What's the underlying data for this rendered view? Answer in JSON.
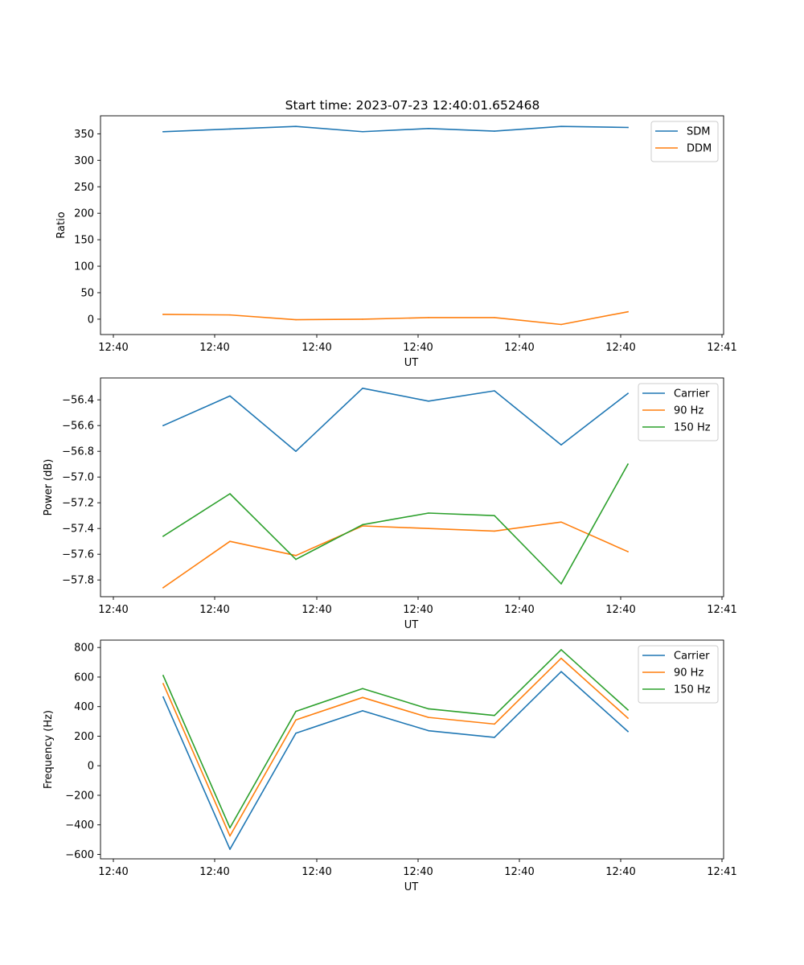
{
  "figure_title": "Start time: 2023-07-23 12:40:01.652468",
  "colors": {
    "blue": "#1f77b4",
    "orange": "#ff7f0e",
    "green": "#2ca02c"
  },
  "chart_data": [
    {
      "type": "line",
      "xlabel": "UT",
      "ylabel": "Ratio",
      "x_tick_labels": [
        "12:40",
        "12:40",
        "12:40",
        "12:40",
        "12:40",
        "12:40",
        "12:41"
      ],
      "y_ticks": [
        0,
        50,
        100,
        150,
        200,
        250,
        300,
        350
      ],
      "ylim": [
        -29,
        384
      ],
      "legend_position": "top-right",
      "x": [
        1,
        2,
        3,
        4,
        5,
        6,
        7,
        8
      ],
      "series": [
        {
          "name": "SDM",
          "color": "#1f77b4",
          "values": [
            354,
            359,
            364,
            354,
            360,
            355,
            364,
            362
          ]
        },
        {
          "name": "DDM",
          "color": "#ff7f0e",
          "values": [
            9,
            8,
            -1,
            0,
            3,
            3,
            -10,
            14
          ]
        }
      ]
    },
    {
      "type": "line",
      "xlabel": "UT",
      "ylabel": "Power (dB)",
      "x_tick_labels": [
        "12:40",
        "12:40",
        "12:40",
        "12:40",
        "12:40",
        "12:40",
        "12:41"
      ],
      "y_ticks": [
        -57.8,
        -57.6,
        -57.4,
        -57.2,
        -57.0,
        -56.8,
        -56.6,
        -56.4
      ],
      "ylim": [
        -57.93,
        -56.23
      ],
      "legend_position": "top-right",
      "x": [
        1,
        2,
        3,
        4,
        5,
        6,
        7,
        8
      ],
      "series": [
        {
          "name": "Carrier",
          "color": "#1f77b4",
          "values": [
            -56.6,
            -56.37,
            -56.8,
            -56.31,
            -56.41,
            -56.33,
            -56.75,
            -56.35
          ]
        },
        {
          "name": "90 Hz",
          "color": "#ff7f0e",
          "values": [
            -57.86,
            -57.5,
            -57.61,
            -57.38,
            -57.4,
            -57.42,
            -57.35,
            -57.58
          ]
        },
        {
          "name": "150 Hz",
          "color": "#2ca02c",
          "values": [
            -57.46,
            -57.13,
            -57.64,
            -57.37,
            -57.28,
            -57.3,
            -57.83,
            -56.9
          ]
        }
      ]
    },
    {
      "type": "line",
      "xlabel": "UT",
      "ylabel": "Frequency (Hz)",
      "x_tick_labels": [
        "12:40",
        "12:40",
        "12:40",
        "12:40",
        "12:40",
        "12:40",
        "12:41"
      ],
      "y_ticks": [
        -600,
        -400,
        -200,
        0,
        200,
        400,
        600,
        800
      ],
      "ylim": [
        -630,
        850
      ],
      "legend_position": "top-right",
      "x": [
        1,
        2,
        3,
        4,
        5,
        6,
        7,
        8
      ],
      "series": [
        {
          "name": "Carrier",
          "color": "#1f77b4",
          "values": [
            465,
            -565,
            220,
            372,
            237,
            192,
            637,
            232
          ]
        },
        {
          "name": "90 Hz",
          "color": "#ff7f0e",
          "values": [
            555,
            -475,
            310,
            462,
            327,
            282,
            727,
            322
          ]
        },
        {
          "name": "150 Hz",
          "color": "#2ca02c",
          "values": [
            610,
            -420,
            368,
            522,
            385,
            340,
            785,
            378
          ]
        }
      ]
    }
  ]
}
